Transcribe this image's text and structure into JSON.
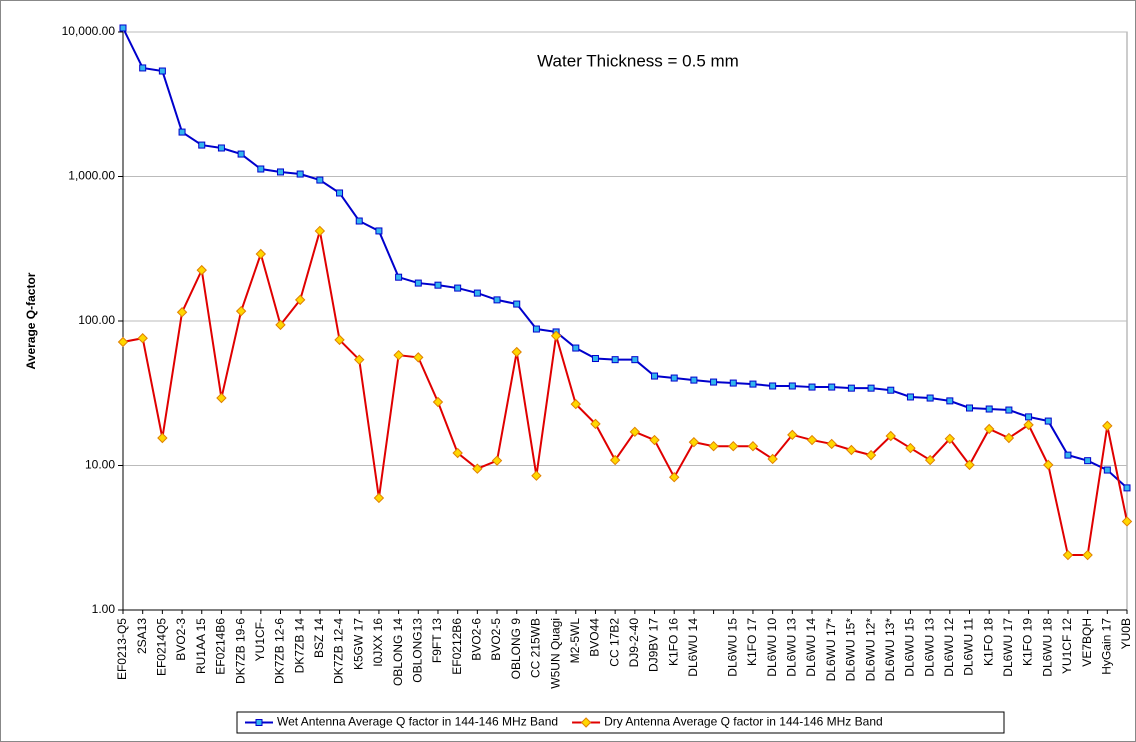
{
  "chart_data": {
    "type": "line",
    "annotation": "Water Thickness = 0.5 mm",
    "y_label": "Average Q-factor",
    "log_scale": true,
    "grid": true,
    "legend_position": "bottom",
    "categories": [
      "EF0213-Q5",
      "2SA13",
      "EF0214Q5",
      "BVO2-3",
      "RU1AA 15",
      "EF0214B6",
      "DK7ZB 19-6",
      "YU1CF-",
      "DK7ZB 12-6",
      "DK7ZB 14",
      "BSZ 14",
      "DK7ZB 12-4",
      "K5GW 17",
      "I0JXX 16",
      "OBLONG 14",
      "OBLONG13",
      "F9FT 13",
      "EF0212B6",
      "BVO2-6",
      "BVO2-5",
      "OBLONG 9",
      "CC 215WB",
      "W5UN Quagi",
      "M2-5WL",
      "BVO44",
      "CC 17B2",
      "DJ9-2-40",
      "DJ9BV 17",
      "K1FO 16",
      "DL6WU 14",
      null,
      "DL6WU 15",
      "K1FO 17",
      "DL6WU 10",
      "DL6WU 13",
      "DL6WU 14",
      "DL6WU 17*",
      "DL6WU 15*",
      "DL6WU 12*",
      "DL6WU 13*",
      "DL6WU 15",
      "DL6WU 13",
      "DL6WU 12",
      "DL6WU 11",
      "K1FO 18",
      "DL6WU 17",
      "K1FO 19",
      "DL6WU 18",
      "YU1CF 12",
      "VE7BQH",
      "HyGain 17",
      "YU0B"
    ],
    "series": [
      {
        "name": "Wet Antenna Average Q factor in 144-146 MHz Band",
        "color": "#0000cc",
        "marker_color": "#33b5ee",
        "marker": "square",
        "values": [
          10660,
          5640,
          5370,
          2030,
          1650,
          1575,
          1430,
          1127,
          1075,
          1040,
          945,
          769,
          492,
          420,
          201,
          183,
          177,
          169,
          156,
          140,
          131,
          88,
          84,
          65,
          55,
          54,
          54,
          41.6,
          40.3,
          39,
          37.8,
          37.2,
          36.6,
          35.5,
          35.5,
          34.9,
          34.9,
          34.3,
          34.3,
          33.2,
          29.8,
          29.3,
          28,
          25,
          24.6,
          24.2,
          21.7,
          20.3,
          11.8,
          10.8,
          9.3,
          7.0
        ]
      },
      {
        "name": "Dry Antenna Average Q factor in 144-146 MHz Band",
        "color": "#e00000",
        "marker_color": "#ffd700",
        "marker": "diamond",
        "values": [
          71.6,
          76,
          15.5,
          115,
          225,
          29.3,
          117,
          291,
          94,
          140,
          420,
          74,
          54,
          5.96,
          58,
          56,
          27.5,
          12.2,
          9.5,
          10.8,
          61,
          8.5,
          79,
          26.6,
          19.4,
          10.9,
          17.1,
          15,
          8.3,
          14.5,
          13.6,
          13.6,
          13.6,
          11.1,
          16.3,
          15,
          14.1,
          12.8,
          11.8,
          16,
          13.2,
          10.9,
          15.3,
          10.1,
          17.9,
          15.5,
          19.1,
          10.1,
          2.4,
          2.4,
          18.8,
          4.1
        ]
      }
    ],
    "ylim": [
      1,
      10000
    ],
    "yticks": [
      {
        "value": 1,
        "label": "1.00"
      },
      {
        "value": 10,
        "label": "10.00"
      },
      {
        "value": 100,
        "label": "100.00"
      },
      {
        "value": 1000,
        "label": "1,000.00"
      },
      {
        "value": 10000,
        "label": "10,000.00"
      }
    ]
  }
}
